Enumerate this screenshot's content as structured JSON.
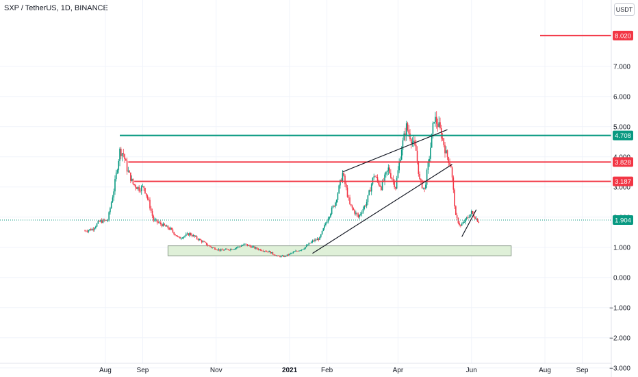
{
  "header": {
    "title": "SXP / TetherUS, 1D, BINANCE",
    "currency": "USDT"
  },
  "chart_data": {
    "type": "candlestick",
    "title": "SXP / TetherUS, 1D, BINANCE",
    "ylim": [
      -3.3,
      9.2
    ],
    "y_ticks": [
      {
        "value": 7.0,
        "label": "7.000"
      },
      {
        "value": 6.0,
        "label": "6.000"
      },
      {
        "value": 5.0,
        "label": "5.000"
      },
      {
        "value": 4.0,
        "label": "4.000"
      },
      {
        "value": 3.0,
        "label": "3.000"
      },
      {
        "value": 2.0,
        "label": "2.000"
      },
      {
        "value": 1.0,
        "label": "1.000"
      },
      {
        "value": 0.0,
        "label": "0.000"
      },
      {
        "value": -1.0,
        "label": "−1.000"
      },
      {
        "value": -2.0,
        "label": "−2.000"
      },
      {
        "value": -3.0,
        "label": "−3.000"
      }
    ],
    "x_ticks": [
      {
        "date": "2020-08-01",
        "label": "Aug",
        "bold": false
      },
      {
        "date": "2020-09-01",
        "label": "Sep",
        "bold": false
      },
      {
        "date": "2020-11-01",
        "label": "Nov",
        "bold": false
      },
      {
        "date": "2021-01-01",
        "label": "2021",
        "bold": true
      },
      {
        "date": "2021-02-01",
        "label": "Feb",
        "bold": false
      },
      {
        "date": "2021-04-01",
        "label": "Apr",
        "bold": false
      },
      {
        "date": "2021-06-01",
        "label": "Jun",
        "bold": false
      },
      {
        "date": "2021-08-01",
        "label": "Aug",
        "bold": false
      },
      {
        "date": "2021-09-01",
        "label": "Sep",
        "bold": false
      }
    ],
    "price_path": [
      [
        "2020-07-15",
        1.55
      ],
      [
        "2020-07-21",
        1.6
      ],
      [
        "2020-07-27",
        1.85
      ],
      [
        "2020-08-03",
        1.9
      ],
      [
        "2020-08-08",
        2.9
      ],
      [
        "2020-08-13",
        4.2
      ],
      [
        "2020-08-16",
        4.1
      ],
      [
        "2020-08-19",
        3.6
      ],
      [
        "2020-08-24",
        3.1
      ],
      [
        "2020-08-29",
        2.95
      ],
      [
        "2020-09-02",
        3.0
      ],
      [
        "2020-09-06",
        2.5
      ],
      [
        "2020-09-10",
        1.9
      ],
      [
        "2020-09-17",
        1.75
      ],
      [
        "2020-09-24",
        1.6
      ],
      [
        "2020-10-01",
        1.3
      ],
      [
        "2020-10-10",
        1.45
      ],
      [
        "2020-10-20",
        1.2
      ],
      [
        "2020-10-28",
        1.0
      ],
      [
        "2020-11-05",
        0.9
      ],
      [
        "2020-11-15",
        0.95
      ],
      [
        "2020-11-25",
        1.1
      ],
      [
        "2020-12-05",
        0.95
      ],
      [
        "2020-12-15",
        0.85
      ],
      [
        "2020-12-22",
        0.7
      ],
      [
        "2020-12-28",
        0.7
      ],
      [
        "2021-01-05",
        0.85
      ],
      [
        "2021-01-12",
        0.95
      ],
      [
        "2021-01-20",
        1.2
      ],
      [
        "2021-01-26",
        1.3
      ],
      [
        "2021-02-02",
        2.0
      ],
      [
        "2021-02-08",
        2.5
      ],
      [
        "2021-02-14",
        3.45
      ],
      [
        "2021-02-20",
        2.4
      ],
      [
        "2021-02-27",
        2.0
      ],
      [
        "2021-03-06",
        2.5
      ],
      [
        "2021-03-12",
        3.4
      ],
      [
        "2021-03-18",
        3.0
      ],
      [
        "2021-03-24",
        3.6
      ],
      [
        "2021-03-30",
        3.0
      ],
      [
        "2021-04-04",
        4.3
      ],
      [
        "2021-04-08",
        5.0
      ],
      [
        "2021-04-12",
        4.6
      ],
      [
        "2021-04-16",
        4.2
      ],
      [
        "2021-04-19",
        3.2
      ],
      [
        "2021-04-23",
        2.9
      ],
      [
        "2021-04-27",
        4.0
      ],
      [
        "2021-05-01",
        5.3
      ],
      [
        "2021-05-05",
        5.0
      ],
      [
        "2021-05-08",
        4.6
      ],
      [
        "2021-05-11",
        4.1
      ],
      [
        "2021-05-15",
        3.7
      ],
      [
        "2021-05-19",
        2.0
      ],
      [
        "2021-05-23",
        1.7
      ],
      [
        "2021-05-27",
        1.9
      ],
      [
        "2021-06-01",
        2.15
      ],
      [
        "2021-06-04",
        2.0
      ],
      [
        "2021-06-07",
        1.85
      ]
    ],
    "horizontal_levels": [
      {
        "value": 8.02,
        "label": "8.020",
        "color": "#f23645",
        "start": "2021-07-28"
      },
      {
        "value": 4.708,
        "label": "4.708",
        "color": "#089981",
        "start": "2020-08-13"
      },
      {
        "value": 3.828,
        "label": "3.828",
        "color": "#f23645",
        "start": "2020-08-20"
      },
      {
        "value": 3.187,
        "label": "3.187",
        "color": "#f23645",
        "start": "2020-08-25"
      }
    ],
    "last_price": {
      "value": 1.904,
      "label": "1.904",
      "color": "#089981"
    },
    "trend_lines": [
      {
        "from": [
          "2021-02-14",
          3.5
        ],
        "to": [
          "2021-05-12",
          4.9
        ]
      },
      {
        "from": [
          "2021-01-20",
          0.8
        ],
        "to": [
          "2021-05-16",
          3.75
        ]
      },
      {
        "from": [
          "2021-05-24",
          1.35
        ],
        "to": [
          "2021-06-05",
          2.25
        ]
      }
    ],
    "zones": [
      {
        "x0": "2020-09-22",
        "x1": "2021-07-04",
        "y0": 0.72,
        "y1": 1.05,
        "fill": "#dff0d8",
        "stroke": "#8a9a8a"
      }
    ],
    "colors": {
      "up": "#089981",
      "down": "#f23645",
      "grid": "#f0f3fa"
    }
  }
}
